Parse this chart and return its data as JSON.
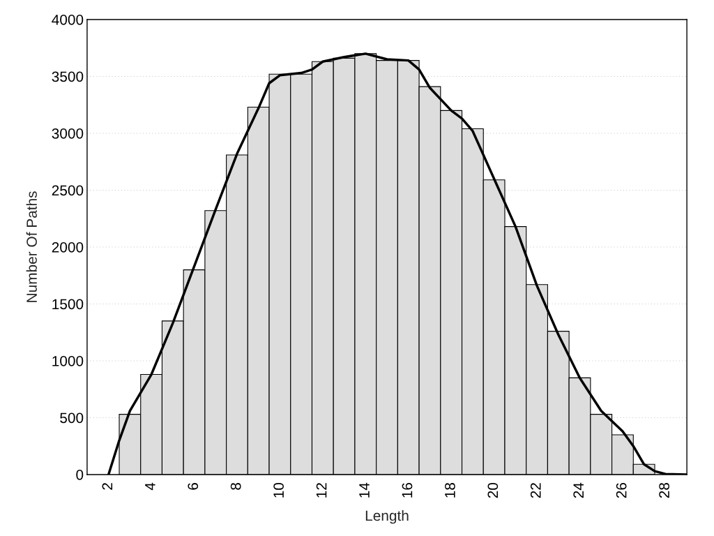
{
  "chart_data": {
    "type": "histogram",
    "xlabel": "Length",
    "ylabel": "Number Of Paths",
    "xlim": [
      1,
      29
    ],
    "xticks": [
      2,
      4,
      6,
      8,
      10,
      12,
      14,
      16,
      18,
      20,
      22,
      24,
      26,
      28
    ],
    "ylim": [
      0,
      4000
    ],
    "yticks": [
      0,
      500,
      1000,
      1500,
      2000,
      2500,
      3000,
      3500,
      4000
    ],
    "grid": "y",
    "series": [
      {
        "color": "#dddddd",
        "bins": [
          2.5,
          3.5,
          4.5,
          5.5,
          6.5,
          7.5,
          8.5,
          9.5,
          10.5,
          11.5,
          12.5,
          13.5,
          14.5,
          15.5,
          16.5,
          17.5,
          18.5,
          19.5,
          20.5,
          21.5,
          22.5,
          23.5,
          24.5,
          25.5,
          26.5,
          27.5
        ],
        "values": [
          530,
          880,
          1350,
          1800,
          2320,
          2810,
          3230,
          3520,
          3520,
          3630,
          3660,
          3700,
          3640,
          3640,
          3410,
          3200,
          3040,
          2590,
          2180,
          1670,
          1260,
          850,
          530,
          350,
          90
        ]
      },
      {
        "type": "line",
        "color": "#000000",
        "line_style": "solid",
        "x": [
          2,
          2.5,
          3,
          3.5,
          4,
          5,
          6,
          7,
          8,
          9,
          9.5,
          10,
          11,
          11.5,
          12,
          13,
          14,
          15,
          16,
          16.5,
          17,
          18,
          18.5,
          19,
          20,
          21,
          22,
          23,
          24,
          25,
          26,
          26.5,
          27,
          27.5,
          28,
          29
        ],
        "values": [
          0,
          300,
          560,
          720,
          880,
          1330,
          1830,
          2330,
          2820,
          3220,
          3440,
          3510,
          3530,
          3560,
          3630,
          3670,
          3700,
          3650,
          3640,
          3560,
          3400,
          3200,
          3130,
          3020,
          2600,
          2180,
          1660,
          1230,
          850,
          560,
          380,
          250,
          90,
          30,
          5,
          0
        ]
      }
    ]
  }
}
